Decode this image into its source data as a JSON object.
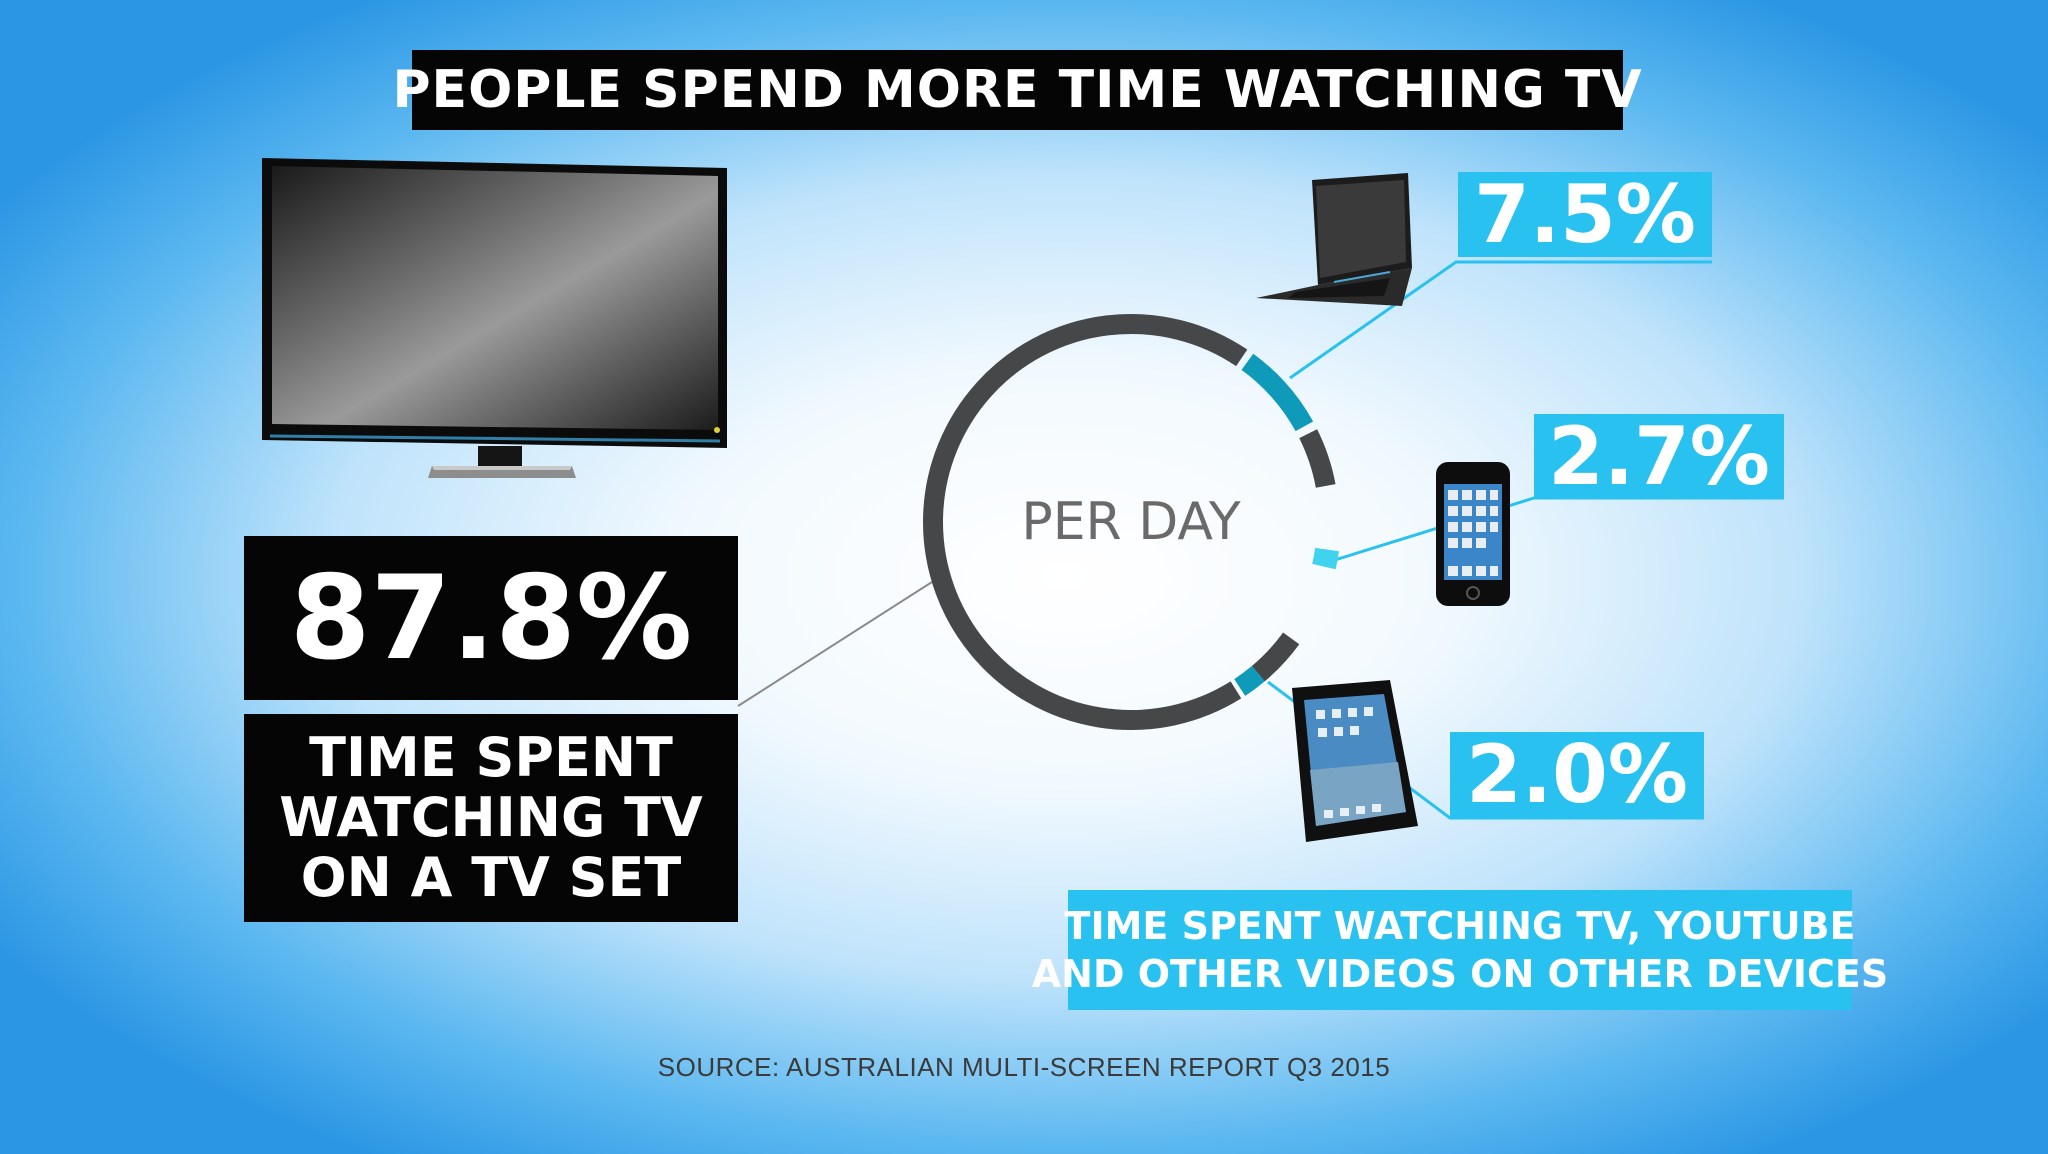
{
  "title": "PEOPLE SPEND MORE TIME WATCHING TV",
  "center_label": "PER DAY",
  "tv": {
    "value": "87.8%",
    "caption_lines": [
      "TIME SPENT",
      "WATCHING TV",
      "ON A TV SET"
    ]
  },
  "devices": [
    {
      "name": "laptop",
      "icon": "laptop-icon",
      "value": "7.5%"
    },
    {
      "name": "phone",
      "icon": "smartphone-icon",
      "value": "2.7%"
    },
    {
      "name": "tablet",
      "icon": "tablet-icon",
      "value": "2.0%"
    }
  ],
  "caption_lines": [
    "TIME SPENT WATCHING TV, YOUTUBE",
    "AND OTHER VIDEOS ON OTHER DEVICES"
  ],
  "source": "SOURCE: AUSTRALIAN MULTI-SCREEN REPORT Q3 2015",
  "colors": {
    "tv_arc": "#464749",
    "laptop_arc": "#0e9ab8",
    "phone_arc": "#3fd3ee",
    "tablet_arc": "#0e9ab8",
    "label_box": "#29c1f0",
    "dark_box": "#050505"
  },
  "chart_data": {
    "type": "pie",
    "categories": [
      "TV set",
      "Laptop",
      "Smartphone",
      "Tablet"
    ],
    "values": [
      87.8,
      7.5,
      2.7,
      2.0
    ],
    "data_labels": [
      "87.8%",
      "7.5%",
      "2.7%",
      "2.0%"
    ],
    "title": "PEOPLE SPEND MORE TIME WATCHING TV",
    "center_label": "PER DAY",
    "style": "donut-ring"
  }
}
